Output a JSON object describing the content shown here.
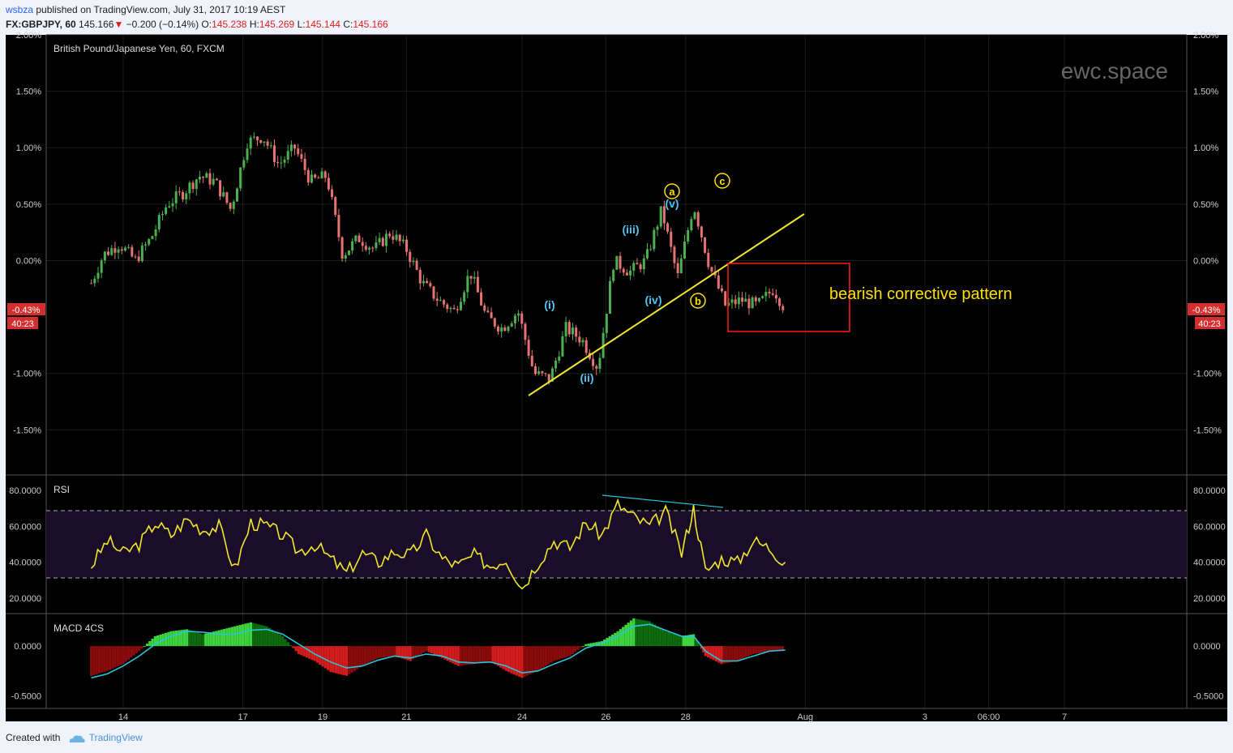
{
  "header": {
    "publisher": "wsbza",
    "published_text": "published on TradingView.com, July 31, 2017 10:19 AEST",
    "symbol": "FX:GBPJPY, 60",
    "last": "145.166",
    "change": "−0.200 (−0.14%)",
    "open_label": "O:",
    "open": "145.238",
    "high_label": "H:",
    "high": "145.269",
    "low_label": "L:",
    "low": "145.144",
    "close_label": "C:",
    "close": "145.166"
  },
  "footer": {
    "created_with": "Created with",
    "brand": "TradingView"
  },
  "colors": {
    "background": "#000000",
    "bull": "#4caf50",
    "bear": "#e57373",
    "rsi": "#f2e62c",
    "macd_line": "#26c6da",
    "annotation": "#ffe000",
    "wave": "#4fc3f7",
    "box": "#ff1a1a"
  },
  "chart_data": [
    {
      "type": "candlestick",
      "title": "British Pound/Japanese Yen, 60, FXCM",
      "watermark": "ewc.space",
      "y_unit": "percent change",
      "ylim": [
        -1.9,
        2.0
      ],
      "y_ticks": [
        "2.00%",
        "1.50%",
        "1.00%",
        "0.50%",
        "0.00%",
        "-1.00%",
        "-1.50%"
      ],
      "last_value_label": "-0.43%",
      "countdown_label": "40:23",
      "x_ticks": [
        "14",
        "17",
        "19",
        "21",
        "24",
        "26",
        "28",
        "Aug",
        "3",
        "06:00",
        "7"
      ],
      "price_path_x_days": [
        12.9,
        13.2,
        13.6,
        14.0,
        14.4,
        14.8,
        15.2,
        15.6,
        16.0,
        16.4,
        16.8,
        17.2,
        17.6,
        18.0,
        18.4,
        18.8,
        19.2,
        19.6,
        20.0,
        20.4,
        20.8,
        21.2,
        21.6,
        22.0,
        22.4,
        22.8,
        23.2,
        23.6,
        24.0,
        24.4,
        24.8,
        25.2,
        25.6,
        26.0,
        26.4,
        26.8,
        27.2,
        27.6,
        28.0,
        28.4,
        28.8,
        29.2,
        29.6,
        30.0,
        30.3
      ],
      "price_path_pct": [
        -0.2,
        0.05,
        0.15,
        0.0,
        0.2,
        0.5,
        0.6,
        0.75,
        0.7,
        0.45,
        1.05,
        1.1,
        0.85,
        1.0,
        0.7,
        0.75,
        0.05,
        0.2,
        0.1,
        0.25,
        0.1,
        -0.2,
        -0.35,
        -0.45,
        -0.1,
        -0.5,
        -0.6,
        -0.45,
        -1.0,
        -1.05,
        -0.6,
        -0.7,
        -0.95,
        0.0,
        -0.1,
        0.0,
        0.45,
        -0.15,
        0.5,
        -0.05,
        -0.4,
        -0.35,
        -0.4,
        -0.25,
        -0.43
      ],
      "annotations": [
        {
          "text": "(i)",
          "color": "wave"
        },
        {
          "text": "(ii)",
          "color": "wave"
        },
        {
          "text": "(iii)",
          "color": "wave"
        },
        {
          "text": "(iv)",
          "color": "wave"
        },
        {
          "text": "(v)",
          "color": "wave"
        },
        {
          "text": "a",
          "color": "annotation"
        },
        {
          "text": "b",
          "color": "annotation"
        },
        {
          "text": "c",
          "color": "annotation"
        },
        {
          "text": "bearish corrective pattern",
          "color": "annotation"
        }
      ]
    },
    {
      "type": "line",
      "title": "RSI",
      "ylim": [
        12,
        88
      ],
      "y_ticks": [
        "80.0000",
        "60.0000",
        "40.0000",
        "20.0000"
      ],
      "bands": [
        30,
        70
      ],
      "x_days": [
        12.9,
        13.3,
        13.7,
        14.1,
        14.5,
        14.9,
        15.3,
        15.7,
        16.1,
        16.5,
        16.9,
        17.3,
        17.7,
        18.1,
        18.5,
        18.9,
        19.3,
        19.7,
        20.1,
        20.5,
        20.9,
        21.3,
        21.7,
        22.1,
        22.5,
        22.9,
        23.3,
        23.7,
        24.1,
        24.5,
        24.9,
        25.3,
        25.7,
        26.1,
        26.5,
        26.9,
        27.3,
        27.7,
        28.0,
        28.3,
        28.7,
        29.1,
        29.5,
        29.9,
        30.3
      ],
      "values": [
        38,
        52,
        45,
        50,
        62,
        55,
        64,
        58,
        60,
        36,
        62,
        60,
        55,
        46,
        50,
        42,
        34,
        45,
        40,
        46,
        44,
        55,
        42,
        38,
        44,
        38,
        42,
        26,
        40,
        52,
        48,
        62,
        55,
        72,
        65,
        60,
        68,
        45,
        70,
        35,
        42,
        40,
        52,
        48,
        40
      ]
    },
    {
      "type": "bar",
      "title": "MACD 4CS",
      "ylim": [
        -0.62,
        0.32
      ],
      "y_ticks": [
        "0.0000",
        "-0.5000"
      ],
      "x_days": [
        12.9,
        13.3,
        13.7,
        14.1,
        14.5,
        14.9,
        15.3,
        15.7,
        16.1,
        16.5,
        16.9,
        17.3,
        17.7,
        18.1,
        18.5,
        18.9,
        19.3,
        19.7,
        20.1,
        20.5,
        20.9,
        21.3,
        21.7,
        22.1,
        22.5,
        22.9,
        23.3,
        23.7,
        24.1,
        24.5,
        24.9,
        25.3,
        25.7,
        26.1,
        26.5,
        26.9,
        27.3,
        27.7,
        28.0,
        28.3,
        28.7,
        29.1,
        29.5,
        29.9,
        30.3
      ],
      "histogram": [
        -0.3,
        -0.25,
        -0.18,
        -0.05,
        0.1,
        0.15,
        0.17,
        0.12,
        0.16,
        0.2,
        0.24,
        0.2,
        0.1,
        -0.08,
        -0.15,
        -0.26,
        -0.3,
        -0.2,
        -0.12,
        -0.1,
        -0.15,
        -0.05,
        -0.12,
        -0.2,
        -0.18,
        -0.15,
        -0.25,
        -0.32,
        -0.25,
        -0.15,
        -0.1,
        0.02,
        0.05,
        0.15,
        0.28,
        0.25,
        0.15,
        0.1,
        0.12,
        -0.1,
        -0.18,
        -0.15,
        -0.08,
        -0.05,
        -0.05
      ],
      "signal": [
        -0.32,
        -0.28,
        -0.2,
        -0.1,
        0.02,
        0.1,
        0.15,
        0.14,
        0.12,
        0.12,
        0.16,
        0.17,
        0.12,
        0.02,
        -0.08,
        -0.16,
        -0.22,
        -0.2,
        -0.14,
        -0.1,
        -0.12,
        -0.08,
        -0.1,
        -0.16,
        -0.17,
        -0.16,
        -0.2,
        -0.27,
        -0.25,
        -0.18,
        -0.12,
        -0.02,
        0.03,
        0.1,
        0.2,
        0.22,
        0.16,
        0.1,
        0.1,
        -0.05,
        -0.15,
        -0.15,
        -0.1,
        -0.05,
        -0.04
      ]
    }
  ]
}
